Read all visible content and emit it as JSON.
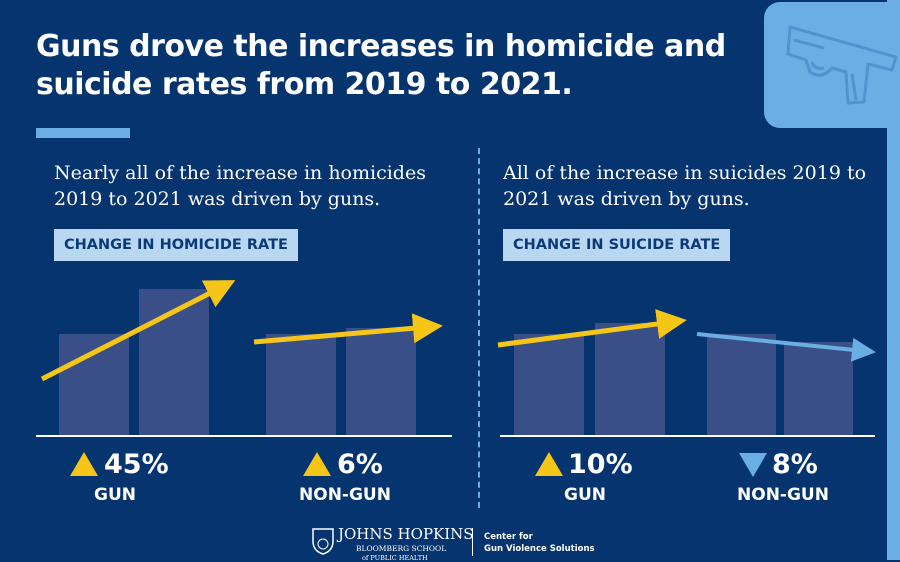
{
  "title": "Guns drove the increases in homicide and suicide rates from 2019 to 2021.",
  "homicide": {
    "subtitle": "Nearly all of the increase in homicides 2019 to 2021 was driven by guns.",
    "tag": "CHANGE IN HOMICIDE RATE",
    "gun": {
      "change": "45%",
      "label": "GUN",
      "direction": "up"
    },
    "nongun": {
      "change": "6%",
      "label": "NON-GUN",
      "direction": "up"
    }
  },
  "suicide": {
    "subtitle": "All of the increase in suicides 2019 to 2021 was driven by guns.",
    "tag": "CHANGE IN SUICIDE RATE",
    "gun": {
      "change": "10%",
      "label": "GUN",
      "direction": "up"
    },
    "nongun": {
      "change": "8%",
      "label": "NON-GUN",
      "direction": "down"
    }
  },
  "footer": {
    "logo_name": "JOHNS HOPKINS",
    "logo_school": "BLOOMBERG SCHOOL",
    "logo_sub": "of PUBLIC HEALTH",
    "center_line1": "Center for",
    "center_line2": "Gun Violence Solutions"
  },
  "colors": {
    "background": "#05346f",
    "accent": "#6aaee3",
    "up_arrow": "#f5c518",
    "down_arrow": "#6aaee3",
    "bar": "#3a4f88"
  },
  "icons": [
    "handgun-icon",
    "up-triangle-icon",
    "down-triangle-icon",
    "shield-logo-icon"
  ]
}
